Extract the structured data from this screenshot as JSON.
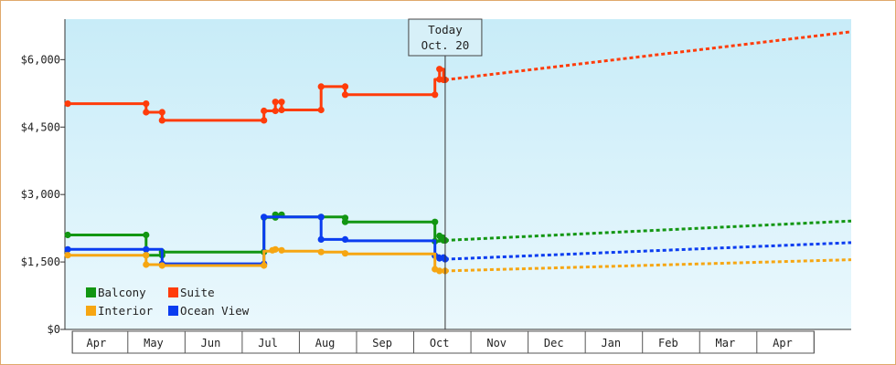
{
  "chart_data": {
    "type": "line",
    "today": {
      "line1": "Today",
      "line2": "Oct. 20",
      "x": 6.6
    },
    "xlim": [
      -0.05,
      13.7
    ],
    "ylim": [
      0,
      6900
    ],
    "y_ticks": [
      0,
      1500,
      3000,
      4500,
      6000
    ],
    "y_tick_labels": [
      "$0",
      "$1,500",
      "$3,000",
      "$4,500",
      "$6,000"
    ],
    "x_tick_labels": [
      "Apr",
      "May",
      "Jun",
      "Jul",
      "Aug",
      "Sep",
      "Oct",
      "Nov",
      "Dec",
      "Jan",
      "Feb",
      "Mar",
      "Apr"
    ],
    "x_tick_positions": [
      0.5,
      1.5,
      2.5,
      3.5,
      4.5,
      5.5,
      6.5,
      7.5,
      8.5,
      9.5,
      10.5,
      11.5,
      12.5
    ],
    "month_boundaries": [
      0.08,
      1.05,
      2.05,
      3.05,
      4.05,
      5.05,
      6.05,
      7.05,
      8.05,
      9.05,
      10.05,
      11.05,
      12.05,
      13.05
    ],
    "background_gradient": [
      "#c8ecf8",
      "#eaf8fd"
    ],
    "legend": {
      "position": "bottom-left"
    },
    "series": [
      {
        "name": "Suite",
        "color": "#ff3c0a",
        "history": [
          [
            0,
            5020
          ],
          [
            1.37,
            5020
          ],
          [
            1.37,
            4830
          ],
          [
            1.65,
            4830
          ],
          [
            1.65,
            4650
          ],
          [
            3.43,
            4650
          ],
          [
            3.43,
            4860
          ],
          [
            3.63,
            4860
          ],
          [
            3.63,
            5060
          ],
          [
            3.74,
            5060
          ],
          [
            3.74,
            4880
          ],
          [
            4.43,
            4880
          ],
          [
            4.43,
            5400
          ],
          [
            4.85,
            5400
          ],
          [
            4.85,
            5220
          ],
          [
            6.42,
            5220
          ],
          [
            6.42,
            5560
          ],
          [
            6.5,
            5560
          ],
          [
            6.5,
            5790
          ],
          [
            6.57,
            5790
          ],
          [
            6.57,
            5550
          ],
          [
            6.6,
            5550
          ]
        ],
        "points": [
          [
            0,
            5020
          ],
          [
            1.37,
            5020
          ],
          [
            1.37,
            4830
          ],
          [
            1.65,
            4830
          ],
          [
            1.65,
            4650
          ],
          [
            3.43,
            4650
          ],
          [
            3.43,
            4860
          ],
          [
            3.63,
            4860
          ],
          [
            3.63,
            5060
          ],
          [
            3.74,
            5060
          ],
          [
            3.74,
            4880
          ],
          [
            4.43,
            4880
          ],
          [
            4.43,
            5400
          ],
          [
            4.85,
            5400
          ],
          [
            4.85,
            5220
          ],
          [
            6.42,
            5220
          ],
          [
            6.5,
            5560
          ],
          [
            6.5,
            5790
          ],
          [
            6.57,
            5550
          ],
          [
            6.6,
            5550
          ]
        ],
        "forecast": [
          [
            6.6,
            5550
          ],
          [
            13.7,
            6620
          ]
        ]
      },
      {
        "name": "Balcony",
        "color": "#129612",
        "history": [
          [
            0,
            2100
          ],
          [
            1.37,
            2100
          ],
          [
            1.37,
            1650
          ],
          [
            1.65,
            1650
          ],
          [
            1.65,
            1720
          ],
          [
            3.43,
            1720
          ],
          [
            3.43,
            2490
          ],
          [
            3.63,
            2490
          ],
          [
            3.63,
            2550
          ],
          [
            3.74,
            2550
          ],
          [
            3.74,
            2500
          ],
          [
            4.85,
            2500
          ],
          [
            4.85,
            2390
          ],
          [
            6.42,
            2390
          ],
          [
            6.42,
            1960
          ],
          [
            6.5,
            1960
          ],
          [
            6.5,
            2080
          ],
          [
            6.57,
            2080
          ],
          [
            6.57,
            1980
          ],
          [
            6.6,
            1980
          ]
        ],
        "points": [
          [
            0,
            2100
          ],
          [
            1.37,
            2100
          ],
          [
            1.37,
            1650
          ],
          [
            1.65,
            1650
          ],
          [
            1.65,
            1720
          ],
          [
            3.43,
            1720
          ],
          [
            3.43,
            2490
          ],
          [
            3.63,
            2490
          ],
          [
            3.63,
            2550
          ],
          [
            3.74,
            2550
          ],
          [
            4.43,
            2500
          ],
          [
            4.85,
            2480
          ],
          [
            4.85,
            2390
          ],
          [
            6.42,
            2390
          ],
          [
            6.42,
            1960
          ],
          [
            6.5,
            2080
          ],
          [
            6.57,
            1980
          ],
          [
            6.6,
            1980
          ]
        ],
        "forecast": [
          [
            6.6,
            1980
          ],
          [
            13.7,
            2410
          ]
        ]
      },
      {
        "name": "Ocean View",
        "color": "#0a3cf0",
        "history": [
          [
            0,
            1780
          ],
          [
            1.37,
            1780
          ],
          [
            1.37,
            1780
          ],
          [
            1.65,
            1780
          ],
          [
            1.65,
            1460
          ],
          [
            3.43,
            1460
          ],
          [
            3.43,
            2500
          ],
          [
            4.43,
            2500
          ],
          [
            4.43,
            2000
          ],
          [
            4.85,
            2000
          ],
          [
            4.85,
            1970
          ],
          [
            6.42,
            1970
          ],
          [
            6.42,
            1640
          ],
          [
            6.5,
            1640
          ],
          [
            6.5,
            1560
          ],
          [
            6.6,
            1560
          ]
        ],
        "points": [
          [
            0,
            1780
          ],
          [
            1.37,
            1780
          ],
          [
            1.65,
            1460
          ],
          [
            3.43,
            1460
          ],
          [
            3.43,
            2500
          ],
          [
            4.43,
            2500
          ],
          [
            4.43,
            2000
          ],
          [
            4.85,
            2000
          ],
          [
            6.42,
            1640
          ],
          [
            6.5,
            1580
          ],
          [
            6.57,
            1600
          ],
          [
            6.6,
            1560
          ]
        ],
        "forecast": [
          [
            6.6,
            1560
          ],
          [
            13.7,
            1930
          ]
        ]
      },
      {
        "name": "Interior",
        "color": "#f6a612",
        "history": [
          [
            0,
            1650
          ],
          [
            1.37,
            1650
          ],
          [
            1.37,
            1440
          ],
          [
            1.65,
            1440
          ],
          [
            1.65,
            1420
          ],
          [
            3.43,
            1420
          ],
          [
            3.43,
            1740
          ],
          [
            3.63,
            1740
          ],
          [
            3.63,
            1780
          ],
          [
            3.74,
            1780
          ],
          [
            3.74,
            1740
          ],
          [
            4.43,
            1740
          ],
          [
            4.43,
            1720
          ],
          [
            4.85,
            1720
          ],
          [
            4.85,
            1680
          ],
          [
            6.42,
            1680
          ],
          [
            6.42,
            1340
          ],
          [
            6.6,
            1300
          ]
        ],
        "points": [
          [
            0,
            1650
          ],
          [
            1.37,
            1650
          ],
          [
            1.37,
            1440
          ],
          [
            1.65,
            1420
          ],
          [
            3.43,
            1420
          ],
          [
            3.58,
            1760
          ],
          [
            3.63,
            1780
          ],
          [
            3.74,
            1760
          ],
          [
            4.43,
            1720
          ],
          [
            4.85,
            1690
          ],
          [
            6.42,
            1340
          ],
          [
            6.5,
            1300
          ],
          [
            6.6,
            1300
          ]
        ],
        "forecast": [
          [
            6.6,
            1300
          ],
          [
            13.7,
            1550
          ]
        ]
      }
    ],
    "legend_order": [
      "Balcony",
      "Suite",
      "Interior",
      "Ocean View"
    ]
  }
}
